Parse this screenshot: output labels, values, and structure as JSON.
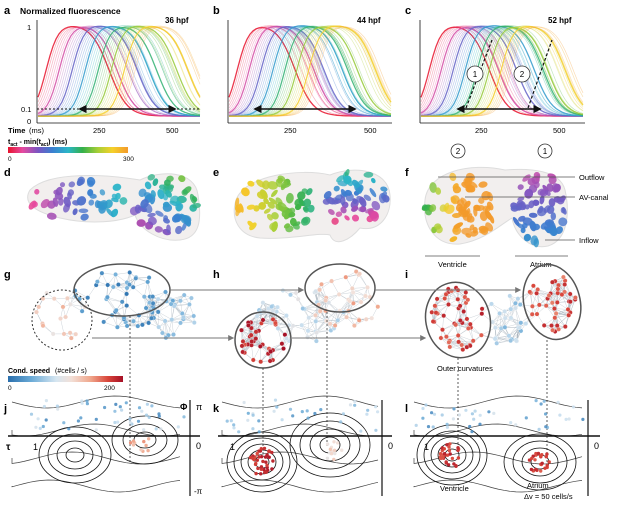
{
  "panel_letters": [
    "a",
    "b",
    "c",
    "d",
    "e",
    "f",
    "g",
    "h",
    "i",
    "j",
    "k",
    "l"
  ],
  "row1": {
    "title": "Normalized fluorescence",
    "hpf": [
      "36 hpf",
      "44 hpf",
      "52 hpf"
    ],
    "yticks": [
      "1",
      "0.1",
      "0"
    ],
    "xticks": [
      "250",
      "500"
    ],
    "time_label": "Time",
    "time_unit": "(ms)",
    "circles": [
      "1",
      "2"
    ]
  },
  "colorbar_tact": {
    "label_main": "t",
    "label_sub1": "act",
    "label_mid": " - min(t",
    "label_sub2": "act",
    "label_end": ") (ms)",
    "min": "0",
    "max": "300",
    "colors": [
      "#e8132d",
      "#e64aa0",
      "#7a55c2",
      "#3a7fd0",
      "#2bb6c8",
      "#34b04a",
      "#a8cf37",
      "#f5d02a",
      "#f39a2b"
    ]
  },
  "row2_labels": {
    "circles": [
      "2",
      "1"
    ],
    "outflow": "Outflow",
    "av_canal": "AV-canal",
    "inflow": "Inflow",
    "ventricle": "Ventricle",
    "atrium": "Atrium"
  },
  "colorbar_speed": {
    "label": "Cond. speed",
    "unit": "(#cells / s)",
    "min": "0",
    "max": "200",
    "colors": [
      "#2a6fad",
      "#6aaad6",
      "#c9dfef",
      "#f2e4de",
      "#f0a68b",
      "#d8453a",
      "#a50f26"
    ]
  },
  "row3_labels": {
    "outer_curvatures": "Outer curvatures"
  },
  "row4": {
    "phi": "Φ",
    "pi": "π",
    "zero": "0",
    "neg_pi": "-π",
    "tau": "τ",
    "one": "1",
    "ventricle": "Ventricle",
    "atrium": "Atrium",
    "scale": "Δv = 50 cells/s"
  }
}
